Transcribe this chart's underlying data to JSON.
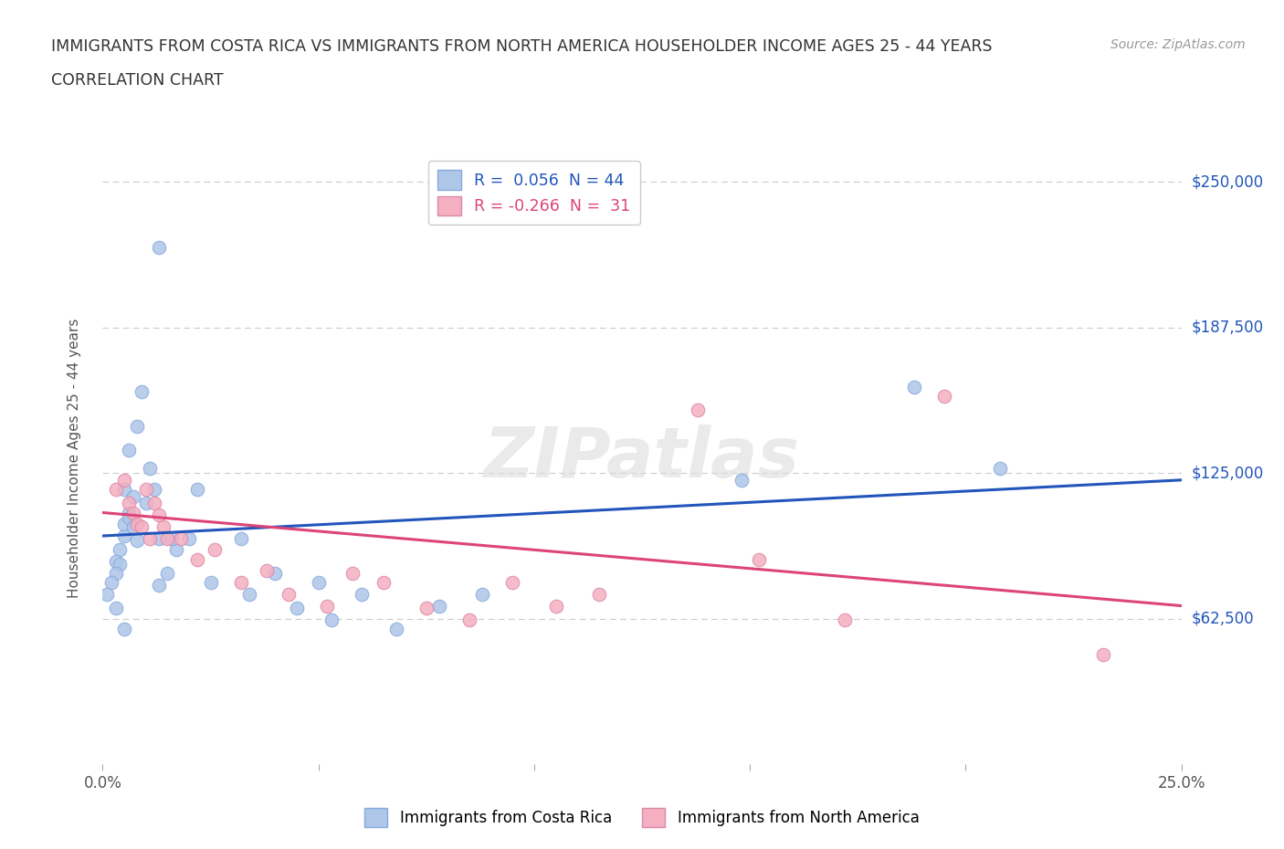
{
  "title_line1": "IMMIGRANTS FROM COSTA RICA VS IMMIGRANTS FROM NORTH AMERICA HOUSEHOLDER INCOME AGES 25 - 44 YEARS",
  "title_line2": "CORRELATION CHART",
  "source": "Source: ZipAtlas.com",
  "ylabel": "Householder Income Ages 25 - 44 years",
  "xlim": [
    0.0,
    0.25
  ],
  "ylim": [
    0,
    262500
  ],
  "yticks": [
    62500,
    125000,
    187500,
    250000
  ],
  "ytick_labels": [
    "$62,500",
    "$125,000",
    "$187,500",
    "$250,000"
  ],
  "xticks": [
    0.0,
    0.05,
    0.1,
    0.15,
    0.2,
    0.25
  ],
  "r_blue": 0.056,
  "n_blue": 44,
  "r_pink": -0.266,
  "n_pink": 31,
  "blue_color": "#aec6e8",
  "pink_color": "#f4afc0",
  "line_blue": "#2255bb",
  "line_pink": "#dd4477",
  "watermark": "ZIPatlas",
  "blue_line_x0": 0.0,
  "blue_line_y0": 98000,
  "blue_line_x1": 0.25,
  "blue_line_y1": 122000,
  "pink_line_x0": 0.0,
  "pink_line_y0": 108000,
  "pink_line_x1": 0.25,
  "pink_line_y1": 68000,
  "blue_points_x": [
    0.008,
    0.009,
    0.006,
    0.005,
    0.007,
    0.006,
    0.005,
    0.004,
    0.003,
    0.013,
    0.012,
    0.011,
    0.01,
    0.005,
    0.006,
    0.007,
    0.008,
    0.004,
    0.003,
    0.002,
    0.001,
    0.022,
    0.02,
    0.017,
    0.015,
    0.013,
    0.003,
    0.005,
    0.025,
    0.032,
    0.034,
    0.04,
    0.045,
    0.05,
    0.053,
    0.06,
    0.068,
    0.078,
    0.088,
    0.148,
    0.188,
    0.208,
    0.013,
    0.016
  ],
  "blue_points_y": [
    145000,
    160000,
    135000,
    118000,
    115000,
    108000,
    98000,
    92000,
    87000,
    97000,
    118000,
    127000,
    112000,
    103000,
    106000,
    102000,
    96000,
    86000,
    82000,
    78000,
    73000,
    118000,
    97000,
    92000,
    82000,
    77000,
    67000,
    58000,
    78000,
    97000,
    73000,
    82000,
    67000,
    78000,
    62000,
    73000,
    58000,
    68000,
    73000,
    122000,
    162000,
    127000,
    222000,
    97000
  ],
  "pink_points_x": [
    0.003,
    0.005,
    0.006,
    0.007,
    0.008,
    0.009,
    0.01,
    0.011,
    0.012,
    0.013,
    0.014,
    0.015,
    0.018,
    0.022,
    0.026,
    0.032,
    0.038,
    0.043,
    0.052,
    0.058,
    0.065,
    0.075,
    0.085,
    0.095,
    0.105,
    0.115,
    0.138,
    0.152,
    0.172,
    0.195,
    0.232
  ],
  "pink_points_y": [
    118000,
    122000,
    112000,
    108000,
    103000,
    102000,
    118000,
    97000,
    112000,
    107000,
    102000,
    97000,
    97000,
    88000,
    92000,
    78000,
    83000,
    73000,
    68000,
    82000,
    78000,
    67000,
    62000,
    78000,
    68000,
    73000,
    152000,
    88000,
    62000,
    158000,
    47000
  ]
}
